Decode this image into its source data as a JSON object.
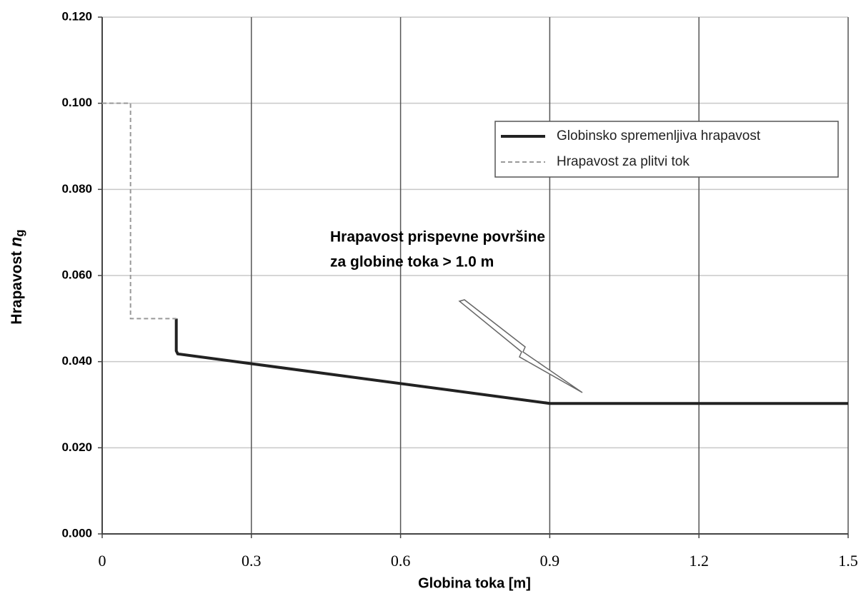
{
  "chart_data": {
    "type": "line",
    "x_label": "Globina toka [m]",
    "y_label": {
      "text": "Hrapavost",
      "var": "n",
      "sub": "g"
    },
    "annotation": [
      "Hrapavost prispevne površine",
      "za globine toka > 1.0 m"
    ],
    "xlim": [
      0,
      1.5
    ],
    "xticks": [
      0,
      0.3,
      0.6,
      0.9,
      1.2,
      1.5
    ],
    "ylim": [
      0,
      0.12
    ],
    "yticks": [
      {
        "value": 0,
        "label": "0.000"
      },
      {
        "value": 0.02,
        "label": "0.020"
      },
      {
        "value": 0.04,
        "label": "0.040"
      },
      {
        "value": 0.06,
        "label": "0.060"
      },
      {
        "value": 0.08,
        "label": "0.080"
      },
      {
        "value": 0.1,
        "label": "0.100"
      },
      {
        "value": 0.12,
        "label": "0.120"
      }
    ],
    "grid": true,
    "legend": "upper right",
    "series": [
      {
        "name": "Globinsko spremenljiva hrapavost",
        "color": "#222222",
        "style": "solid",
        "x": [
          0.149,
          0.149,
          0.152,
          0.9,
          1.5
        ],
        "values": [
          0.05,
          0.0425,
          0.0418,
          0.0303,
          0.0303
        ]
      },
      {
        "name": "Hrapavost za plitvi tok",
        "color": "#999999",
        "style": "dashed",
        "x": [
          0,
          0.057,
          0.057,
          0.149
        ],
        "values": [
          0.1,
          0.1,
          0.05,
          0.05
        ]
      }
    ]
  }
}
